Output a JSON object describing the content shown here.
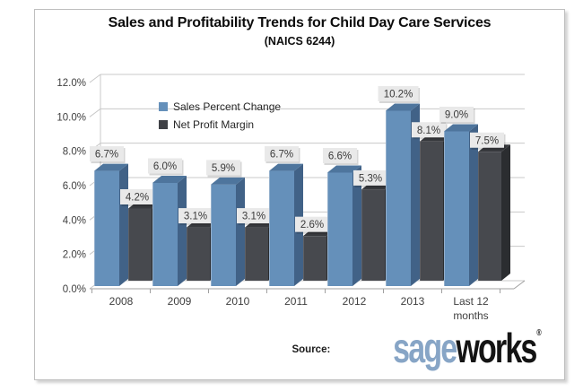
{
  "chart_data": {
    "type": "bar",
    "style": "3d-clustered-column",
    "title": "Sales and Profitability Trends for Child Day Care Services",
    "subtitle": "(NAICS 6244)",
    "categories": [
      "2008",
      "2009",
      "2010",
      "2011",
      "2012",
      "2013",
      "Last 12\nmonths"
    ],
    "series": [
      {
        "name": "Sales Percent Change",
        "values": [
          6.7,
          6.0,
          5.9,
          6.7,
          6.6,
          10.2,
          9.0
        ],
        "labels": [
          "6.7%",
          "6.0%",
          "5.9%",
          "6.7%",
          "6.6%",
          "10.2%",
          "9.0%"
        ],
        "color_front": "#6590BA",
        "color_side": "#416287",
        "color_top": "#4E759D",
        "color_edge": "#93AFCC"
      },
      {
        "name": "Net Profit Margin",
        "values": [
          4.2,
          3.1,
          3.1,
          2.6,
          5.3,
          8.1,
          7.5
        ],
        "labels": [
          "4.2%",
          "3.1%",
          "3.1%",
          "2.6%",
          "5.3%",
          "8.1%",
          "7.5%"
        ],
        "color_front": "#47494E",
        "color_side": "#2B2D30",
        "color_top": "#37393D",
        "color_edge": "#5E6065"
      }
    ],
    "xlabel": "",
    "ylabel": "",
    "ylim": [
      0,
      12
    ],
    "ytick_step": 2,
    "yticks": [
      "0.0%",
      "2.0%",
      "4.0%",
      "6.0%",
      "8.0%",
      "10.0%",
      "12.0%"
    ],
    "grid": true,
    "legend_position": "top-left-inside",
    "value_label_bg": "#E9E9E9",
    "value_label_color": "#3A3A3A",
    "grid_color": "#C8C8C8",
    "axis_color": "#A0A0A0",
    "axis_text_color": "#3F3F3F"
  },
  "legend": {
    "items": [
      {
        "label": "Sales Percent Change",
        "color": "#6590BA"
      },
      {
        "label": "Net Profit Margin",
        "color": "#3F4146"
      }
    ]
  },
  "source": {
    "label": "Source:",
    "logo_part1": "sage",
    "logo_part1_color": "#87A5C6",
    "logo_part2": "works",
    "logo_part2_color": "#141414",
    "registered": "®"
  }
}
